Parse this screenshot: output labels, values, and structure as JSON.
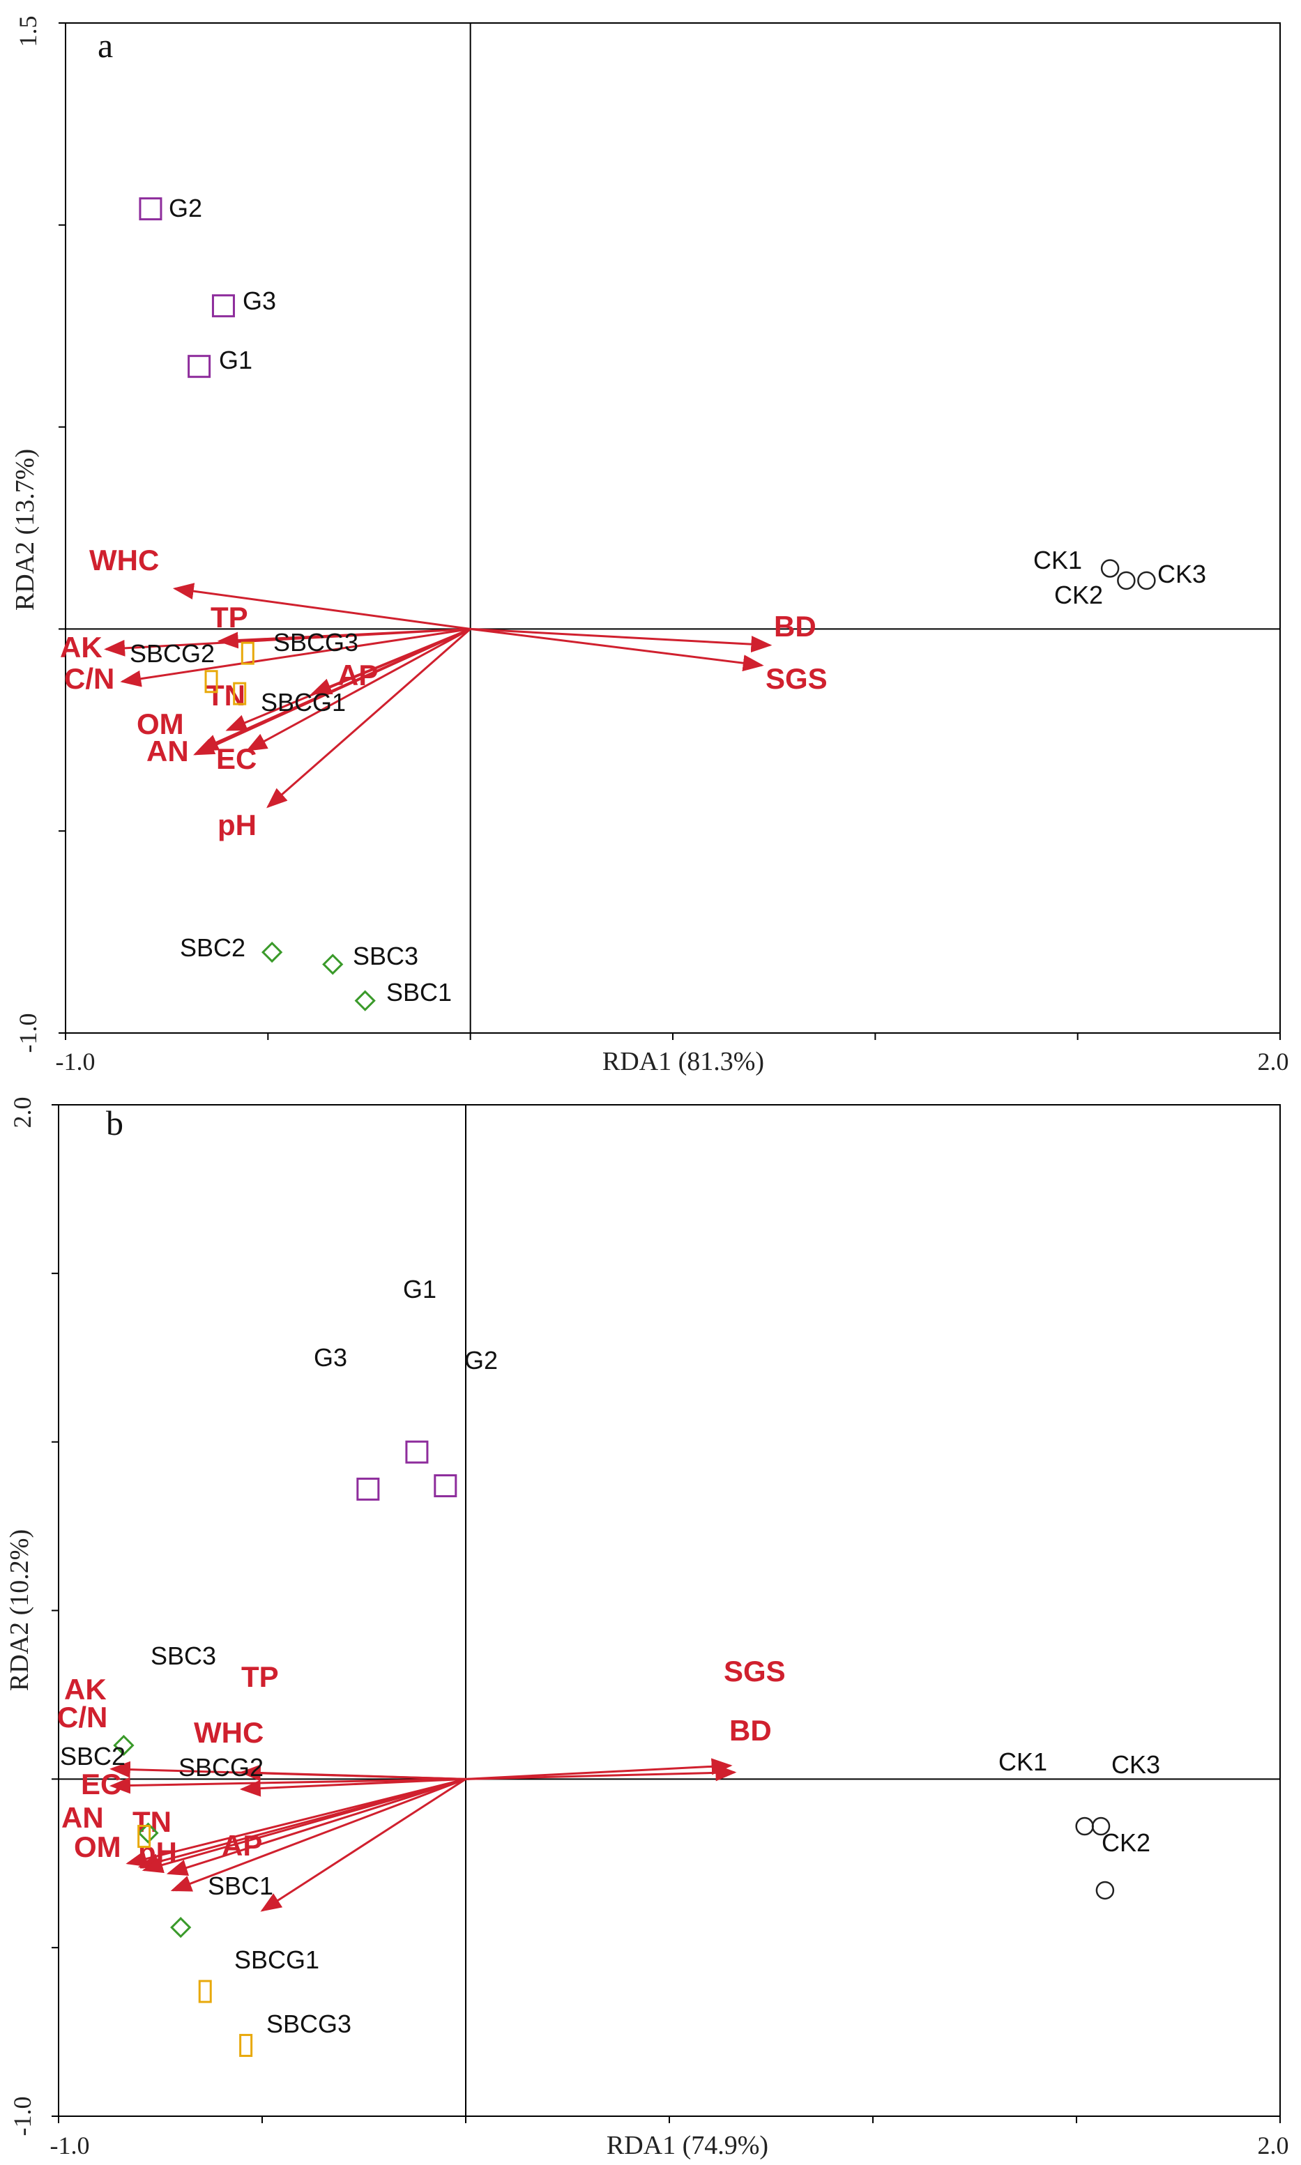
{
  "colors": {
    "arrow": "#d0202e",
    "g_marker": "#8e2d9c",
    "sbc_marker": "#3a9a2a",
    "sbcg_marker": "#e8a90c",
    "ck_marker": "#222222",
    "axis": "#000000"
  },
  "chart_data": [
    {
      "type": "scatter",
      "panel_label": "a",
      "title": "",
      "xlabel": "RDA1 (81.3%)",
      "ylabel": "RDA2 (13.7%)",
      "xlim": [
        -1.0,
        2.0
      ],
      "ylim": [
        -1.0,
        1.5
      ],
      "x_tick_labels": [
        "-1.0",
        "2.0"
      ],
      "y_tick_labels": [
        "-1.0",
        "1.5"
      ],
      "x_ticks": [
        -1.0,
        -0.5,
        0.0,
        0.5,
        1.0,
        1.5,
        2.0
      ],
      "y_ticks": [
        -1.0,
        -0.5,
        0.0,
        0.5,
        1.0,
        1.5
      ],
      "origin": [
        0,
        0
      ],
      "arrows": [
        {
          "name": "WHC",
          "x": -0.73,
          "y": 0.1
        },
        {
          "name": "TP",
          "x": -0.62,
          "y": -0.03
        },
        {
          "name": "AK",
          "x": -0.9,
          "y": -0.05
        },
        {
          "name": "C/N",
          "x": -0.86,
          "y": -0.13
        },
        {
          "name": "AP",
          "x": -0.39,
          "y": -0.16
        },
        {
          "name": "TN",
          "x": -0.6,
          "y": -0.25
        },
        {
          "name": "OM",
          "x": -0.67,
          "y": -0.3
        },
        {
          "name": "AN",
          "x": -0.68,
          "y": -0.31
        },
        {
          "name": "EC",
          "x": -0.55,
          "y": -0.3
        },
        {
          "name": "pH",
          "x": -0.5,
          "y": -0.44
        },
        {
          "name": "BD",
          "x": 0.74,
          "y": -0.04
        },
        {
          "name": "SGS",
          "x": 0.72,
          "y": -0.09
        }
      ],
      "samples": [
        {
          "name": "G1",
          "group": "G",
          "x": -0.67,
          "y": 0.65
        },
        {
          "name": "G2",
          "group": "G",
          "x": -0.79,
          "y": 1.04
        },
        {
          "name": "G3",
          "group": "G",
          "x": -0.61,
          "y": 0.8
        },
        {
          "name": "SBC1",
          "group": "SBC",
          "x": -0.26,
          "y": -0.92
        },
        {
          "name": "SBC2",
          "group": "SBC",
          "x": -0.49,
          "y": -0.8
        },
        {
          "name": "SBC3",
          "group": "SBC",
          "x": -0.34,
          "y": -0.83
        },
        {
          "name": "SBCG1",
          "group": "SBCG",
          "x": -0.57,
          "y": -0.16
        },
        {
          "name": "SBCG2",
          "group": "SBCG",
          "x": -0.64,
          "y": -0.13
        },
        {
          "name": "SBCG3",
          "group": "SBCG",
          "x": -0.55,
          "y": -0.06
        },
        {
          "name": "CK1",
          "group": "CK",
          "x": 1.58,
          "y": 0.15
        },
        {
          "name": "CK2",
          "group": "CK",
          "x": 1.62,
          "y": 0.12
        },
        {
          "name": "CK3",
          "group": "CK",
          "x": 1.67,
          "y": 0.12
        }
      ]
    },
    {
      "type": "scatter",
      "panel_label": "b",
      "title": "",
      "xlabel": "RDA1 (74.9%)",
      "ylabel": "RDA2 (10.2%)",
      "xlim": [
        -1.0,
        2.0
      ],
      "ylim": [
        -1.0,
        2.0
      ],
      "x_tick_labels": [
        "-1.0",
        "2.0"
      ],
      "y_tick_labels": [
        "-1.0",
        "2.0"
      ],
      "x_ticks": [
        -1.0,
        -0.5,
        0.0,
        0.5,
        1.0,
        1.5,
        2.0
      ],
      "y_ticks": [
        -1.0,
        -0.5,
        0.0,
        0.5,
        1.0,
        1.5,
        2.0
      ],
      "origin": [
        0,
        0
      ],
      "arrows": [
        {
          "name": "SGS",
          "x": 0.65,
          "y": 0.04
        },
        {
          "name": "BD",
          "x": 0.66,
          "y": 0.02
        },
        {
          "name": "TP",
          "x": -0.55,
          "y": 0.02
        },
        {
          "name": "AK",
          "x": -0.87,
          "y": 0.03
        },
        {
          "name": "C/N",
          "x": -0.87,
          "y": -0.02
        },
        {
          "name": "WHC",
          "x": -0.55,
          "y": -0.03
        },
        {
          "name": "EC",
          "x": -0.83,
          "y": -0.25
        },
        {
          "name": "AN",
          "x": -0.8,
          "y": -0.26
        },
        {
          "name": "OM",
          "x": -0.79,
          "y": -0.27
        },
        {
          "name": "TN",
          "x": -0.73,
          "y": -0.28
        },
        {
          "name": "pH",
          "x": -0.72,
          "y": -0.33
        },
        {
          "name": "AP",
          "x": -0.5,
          "y": -0.39
        }
      ],
      "samples": [
        {
          "name": "G1",
          "group": "G",
          "x": -0.12,
          "y": 0.97
        },
        {
          "name": "G2",
          "group": "G",
          "x": -0.05,
          "y": 0.87
        },
        {
          "name": "G3",
          "group": "G",
          "x": -0.24,
          "y": 0.86
        },
        {
          "name": "SBC1",
          "group": "SBC",
          "x": -0.7,
          "y": -0.44
        },
        {
          "name": "SBC2",
          "group": "SBC",
          "x": -0.78,
          "y": -0.16
        },
        {
          "name": "SBC3",
          "group": "SBC",
          "x": -0.84,
          "y": 0.1
        },
        {
          "name": "SBCG1",
          "group": "SBCG",
          "x": -0.64,
          "y": -0.63
        },
        {
          "name": "SBCG2",
          "group": "SBCG",
          "x": -0.79,
          "y": -0.17
        },
        {
          "name": "SBCG3",
          "group": "SBCG",
          "x": -0.54,
          "y": -0.79
        },
        {
          "name": "CK1",
          "group": "CK",
          "x": 1.52,
          "y": -0.14
        },
        {
          "name": "CK2",
          "group": "CK",
          "x": 1.57,
          "y": -0.33
        },
        {
          "name": "CK3",
          "group": "CK",
          "x": 1.56,
          "y": -0.14
        }
      ]
    }
  ]
}
